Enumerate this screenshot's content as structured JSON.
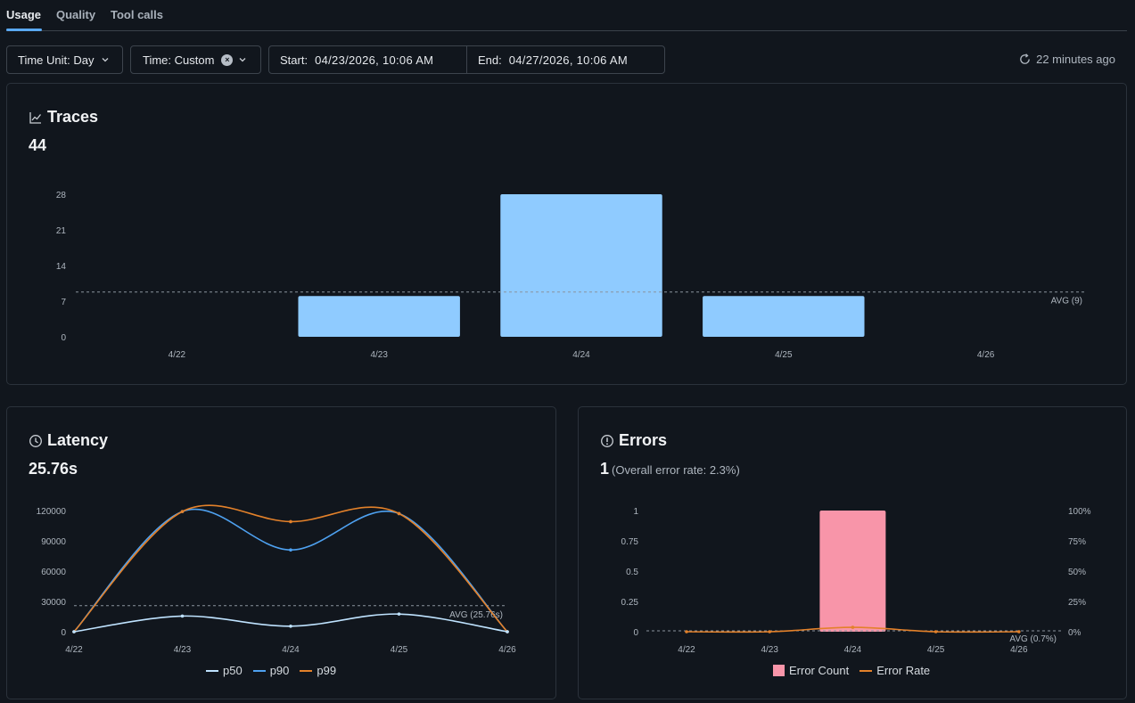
{
  "tabs": [
    {
      "label": "Usage",
      "active": true
    },
    {
      "label": "Quality",
      "active": false
    },
    {
      "label": "Tool calls",
      "active": false
    }
  ],
  "controls": {
    "time_unit": "Time Unit: Day",
    "time": "Time: Custom",
    "start_label": "Start:",
    "start_value": "04/23/2026, 10:06 AM",
    "end_label": "End:",
    "end_value": "04/27/2026, 10:06 AM",
    "refresh_text": "22 minutes ago"
  },
  "traces": {
    "title": "Traces",
    "value": "44",
    "avg_label": "AVG (9)"
  },
  "latency": {
    "title": "Latency",
    "value": "25.76s",
    "avg_label": "AVG (25.76s)"
  },
  "errors": {
    "title": "Errors",
    "value": "1",
    "sub": "(Overall error rate: 2.3%)",
    "avg_label": "AVG (0.7%)"
  },
  "colors": {
    "traces_bar": "#8fcbff",
    "p50": "#bfe3ff",
    "p90": "#4ea1f0",
    "p99": "#e3812a",
    "error_bar": "#f895a9",
    "error_rate": "#e3812a"
  },
  "chart_data": [
    {
      "type": "bar",
      "categories": [
        "4/22",
        "4/23",
        "4/24",
        "4/25",
        "4/26"
      ],
      "values": [
        0,
        8,
        28,
        8,
        0
      ],
      "ylim": [
        0,
        28
      ],
      "yticks": [
        0,
        7,
        14,
        21,
        28
      ],
      "avg": 8.8,
      "grid": false
    },
    {
      "type": "line",
      "categories": [
        "4/22",
        "4/23",
        "4/24",
        "4/25",
        "4/26"
      ],
      "series": [
        {
          "name": "p50",
          "values": [
            0,
            15500,
            5500,
            17500,
            0
          ]
        },
        {
          "name": "p90",
          "values": [
            0,
            119000,
            81000,
            117000,
            0
          ]
        },
        {
          "name": "p99",
          "values": [
            0,
            119000,
            109000,
            117000,
            0
          ]
        }
      ],
      "ylim": [
        0,
        120000
      ],
      "yticks": [
        0,
        30000,
        60000,
        90000,
        120000
      ],
      "avg": 25760,
      "legend": "bottom"
    },
    {
      "type": "bar",
      "categories": [
        "4/22",
        "4/23",
        "4/24",
        "4/25",
        "4/26"
      ],
      "series": [
        {
          "name": "Error Count",
          "values": [
            0,
            0,
            1,
            0,
            0
          ]
        },
        {
          "name": "Error Rate",
          "values": [
            0,
            0,
            3.6,
            0,
            0
          ]
        }
      ],
      "ylim": [
        0,
        1
      ],
      "yticks": [
        0,
        0.25,
        0.5,
        0.75,
        1
      ],
      "y2lim": [
        0,
        100
      ],
      "y2ticks": [
        "0%",
        "25%",
        "50%",
        "75%",
        "100%"
      ],
      "avg": 0.7,
      "legend": "bottom"
    }
  ]
}
